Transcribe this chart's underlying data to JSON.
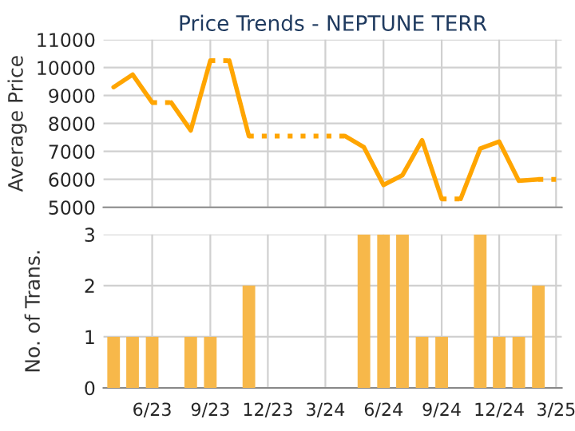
{
  "chart_data": [
    {
      "type": "line",
      "title": "Price Trends - NEPTUNE TERR",
      "ylabel": "Average Price",
      "series": [
        {
          "color": "#ffa500",
          "line_style": "solid",
          "x": [
            "2023-04",
            "2023-05",
            "2023-06"
          ],
          "values": [
            9300,
            9750,
            8750
          ]
        },
        {
          "color": "#ffa500",
          "line_style": "dotted",
          "x": [
            "2023-06",
            "2023-07"
          ],
          "values": [
            8750,
            8750
          ]
        },
        {
          "color": "#ffa500",
          "line_style": "solid",
          "x": [
            "2023-07",
            "2023-08",
            "2023-09"
          ],
          "values": [
            8750,
            7750,
            10250
          ]
        },
        {
          "color": "#ffa500",
          "line_style": "dotted",
          "x": [
            "2023-09",
            "2023-10"
          ],
          "values": [
            10250,
            10250
          ]
        },
        {
          "color": "#ffa500",
          "line_style": "solid",
          "x": [
            "2023-10",
            "2023-11"
          ],
          "values": [
            10250,
            7550
          ]
        },
        {
          "color": "#ffa500",
          "line_style": "dotted",
          "x": [
            "2023-11",
            "2023-12",
            "2024-01",
            "2024-02",
            "2024-03",
            "2024-04"
          ],
          "values": [
            7550,
            7550,
            7550,
            7550,
            7550,
            7550
          ]
        },
        {
          "color": "#ffa500",
          "line_style": "solid",
          "x": [
            "2024-04",
            "2024-05",
            "2024-06",
            "2024-07",
            "2024-08",
            "2024-09"
          ],
          "values": [
            7550,
            7150,
            5800,
            6150,
            7400,
            5300
          ]
        },
        {
          "color": "#ffa500",
          "line_style": "dotted",
          "x": [
            "2024-09",
            "2024-10"
          ],
          "values": [
            5300,
            5300
          ]
        },
        {
          "color": "#ffa500",
          "line_style": "solid",
          "x": [
            "2024-10",
            "2024-11",
            "2024-12",
            "2025-01",
            "2025-02"
          ],
          "values": [
            5300,
            7100,
            7350,
            5950,
            6000
          ]
        },
        {
          "color": "#ffa500",
          "line_style": "dotted",
          "x": [
            "2025-02",
            "2025-03"
          ],
          "values": [
            6000,
            6000
          ]
        }
      ],
      "xlim": [
        "2023-03-16",
        "2025-03-10"
      ],
      "xticks": [
        {
          "value": "2023-06",
          "label": null
        },
        {
          "value": "2023-09",
          "label": null
        },
        {
          "value": "2023-12",
          "label": null
        },
        {
          "value": "2024-03",
          "label": null
        },
        {
          "value": "2024-06",
          "label": null
        },
        {
          "value": "2024-09",
          "label": null
        },
        {
          "value": "2024-12",
          "label": null
        },
        {
          "value": "2025-03",
          "label": null
        }
      ],
      "ylim": [
        5000,
        11000
      ],
      "yticks": [
        5000,
        6000,
        7000,
        8000,
        9000,
        10000,
        11000
      ],
      "grid": true,
      "tick_labels": "y",
      "marker": "none"
    },
    {
      "type": "bar",
      "ylabel": "No. of Trans.",
      "x": [
        "2023-04",
        "2023-05",
        "2023-06",
        "2023-07",
        "2023-08",
        "2023-09",
        "2023-10",
        "2023-11",
        "2023-12",
        "2024-01",
        "2024-02",
        "2024-03",
        "2024-04",
        "2024-05",
        "2024-06",
        "2024-07",
        "2024-08",
        "2024-09",
        "2024-10",
        "2024-11",
        "2024-12",
        "2025-01",
        "2025-02"
      ],
      "values": [
        1,
        1,
        1,
        0,
        1,
        1,
        0,
        2,
        0,
        0,
        0,
        0,
        0,
        3,
        3,
        3,
        1,
        1,
        0,
        3,
        1,
        1,
        2
      ],
      "color": "#f7b84a",
      "xlim": [
        "2023-03-16",
        "2025-03-10"
      ],
      "xticks": [
        {
          "value": "2023-06",
          "label": "6/23"
        },
        {
          "value": "2023-09",
          "label": "9/23"
        },
        {
          "value": "2023-12",
          "label": "12/23"
        },
        {
          "value": "2024-03",
          "label": "3/24"
        },
        {
          "value": "2024-06",
          "label": "6/24"
        },
        {
          "value": "2024-09",
          "label": "9/24"
        },
        {
          "value": "2024-12",
          "label": "12/24"
        },
        {
          "value": "2025-03",
          "label": "3/25"
        }
      ],
      "ylim": [
        0,
        3
      ],
      "yticks": [
        0,
        1,
        2,
        3
      ],
      "grid": true
    }
  ]
}
